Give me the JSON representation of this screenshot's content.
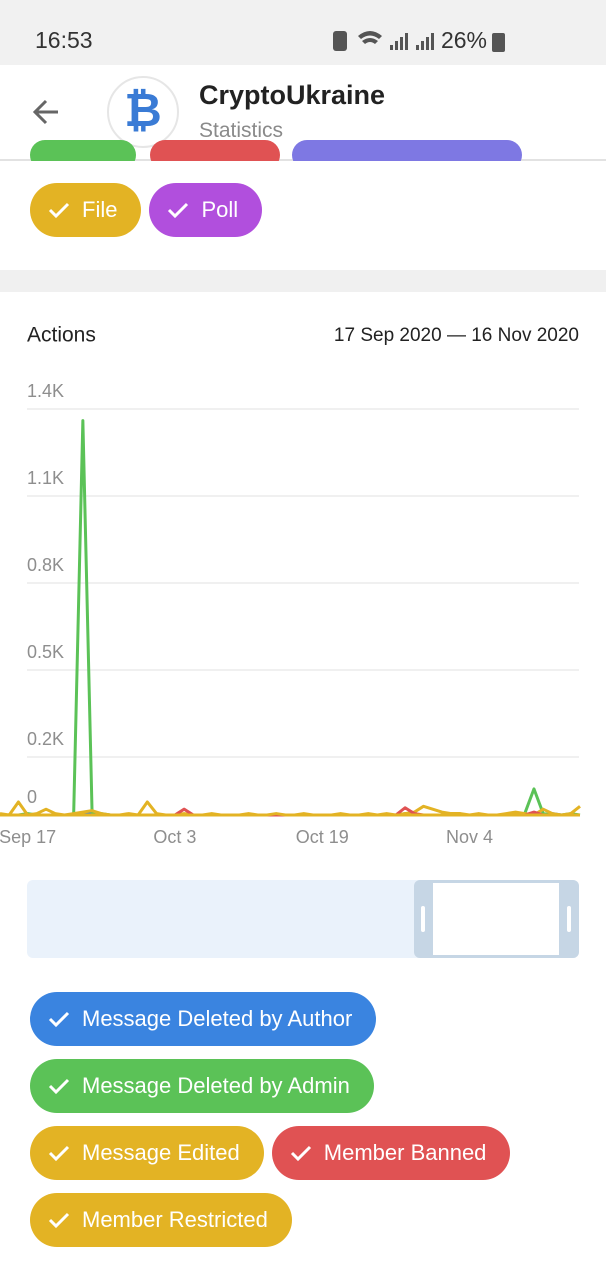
{
  "status_bar": {
    "time": "16:53",
    "battery": "26%"
  },
  "header": {
    "title": "CryptoUkraine",
    "subtitle": "Statistics"
  },
  "top_chips": [
    {
      "label": "File",
      "color": "#e3b324"
    },
    {
      "label": "Poll",
      "color": "#b14fdd"
    }
  ],
  "chart_data": {
    "type": "line",
    "title": "Actions",
    "date_range": "17 Sep 2020 — 16 Nov 2020",
    "categories": [
      null,
      null,
      null,
      "Sep 17",
      null,
      null,
      null,
      null,
      null,
      null,
      null,
      null,
      null,
      null,
      null,
      null,
      null,
      null,
      null,
      "Oct 3",
      null,
      null,
      null,
      null,
      null,
      null,
      null,
      null,
      null,
      null,
      null,
      null,
      null,
      null,
      null,
      "Oct 19",
      null,
      null,
      null,
      null,
      null,
      null,
      null,
      null,
      null,
      null,
      null,
      null,
      null,
      null,
      null,
      "Nov 4",
      null,
      null,
      null,
      null,
      null,
      null,
      null,
      null,
      null,
      null,
      null,
      null
    ],
    "ylim": [
      0,
      1400
    ],
    "yticks": [
      0,
      {
        "value": 200,
        "label": "0.2K"
      },
      {
        "value": 500,
        "label": "0.5K"
      },
      {
        "value": 800,
        "label": "0.8K"
      },
      {
        "value": 1100,
        "label": "1.1K"
      },
      {
        "value": 1400,
        "label": "1.4K"
      }
    ],
    "grid": true,
    "series": [
      {
        "name": "Message Deleted by Author",
        "color": "#3a84e0",
        "values": [
          0,
          0,
          0,
          0,
          0,
          0,
          0,
          0,
          0,
          0,
          10,
          0,
          0,
          0,
          0,
          0,
          0,
          0,
          0,
          0,
          0,
          0,
          0,
          0,
          0,
          0,
          0,
          0,
          0,
          0,
          0,
          0,
          0,
          0,
          0,
          0,
          0,
          0,
          0,
          0,
          0,
          0,
          0,
          0,
          0,
          0,
          0,
          0,
          0,
          0,
          0,
          0,
          0,
          0,
          0,
          0,
          0,
          0,
          0,
          0,
          5,
          0,
          0,
          0
        ]
      },
      {
        "name": "Message Deleted by Admin",
        "color": "#5bc257",
        "values": [
          0,
          0,
          0,
          5,
          0,
          0,
          0,
          0,
          0,
          1360,
          10,
          5,
          0,
          0,
          0,
          0,
          0,
          0,
          0,
          0,
          0,
          0,
          0,
          0,
          0,
          0,
          0,
          0,
          0,
          0,
          0,
          0,
          0,
          0,
          0,
          0,
          0,
          0,
          0,
          0,
          0,
          0,
          0,
          0,
          5,
          0,
          0,
          0,
          0,
          0,
          0,
          0,
          0,
          0,
          0,
          0,
          0,
          5,
          90,
          5,
          0,
          0,
          5,
          0
        ]
      },
      {
        "name": "Message Edited",
        "color": "#e3b324",
        "values": [
          5,
          0,
          45,
          0,
          5,
          20,
          5,
          0,
          5,
          10,
          15,
          5,
          0,
          0,
          5,
          0,
          45,
          5,
          0,
          0,
          5,
          0,
          0,
          5,
          0,
          0,
          0,
          5,
          0,
          0,
          0,
          0,
          0,
          5,
          0,
          0,
          0,
          5,
          0,
          0,
          5,
          0,
          5,
          0,
          5,
          10,
          30,
          20,
          10,
          5,
          5,
          0,
          5,
          0,
          0,
          5,
          10,
          5,
          0,
          20,
          5,
          0,
          5,
          30
        ]
      },
      {
        "name": "Member Banned",
        "color": "#e05253",
        "values": [
          0,
          0,
          0,
          0,
          0,
          0,
          0,
          0,
          0,
          0,
          0,
          0,
          0,
          0,
          0,
          0,
          0,
          0,
          0,
          0,
          20,
          0,
          0,
          0,
          0,
          0,
          0,
          0,
          0,
          0,
          0,
          0,
          0,
          0,
          0,
          0,
          0,
          0,
          0,
          0,
          0,
          0,
          0,
          0,
          25,
          5,
          0,
          0,
          0,
          0,
          0,
          0,
          0,
          0,
          0,
          0,
          0,
          0,
          10,
          0,
          0,
          0,
          0,
          0
        ]
      },
      {
        "name": "Member Restricted",
        "color": "#e3b324",
        "values": [
          0,
          0,
          0,
          0,
          0,
          0,
          0,
          0,
          0,
          0,
          0,
          0,
          0,
          0,
          0,
          0,
          0,
          0,
          0,
          0,
          0,
          0,
          0,
          0,
          0,
          0,
          0,
          0,
          0,
          0,
          5,
          0,
          0,
          0,
          0,
          0,
          0,
          0,
          0,
          0,
          0,
          0,
          0,
          0,
          0,
          0,
          0,
          0,
          0,
          0,
          0,
          0,
          0,
          0,
          0,
          0,
          0,
          0,
          0,
          0,
          0,
          0,
          0,
          0
        ]
      }
    ]
  }
}
